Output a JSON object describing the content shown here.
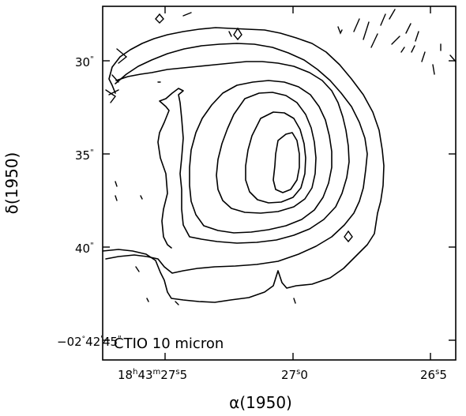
{
  "chart_data": {
    "type": "contour",
    "annotation": "CTIO 10 micron",
    "xlabel": "α(1950)",
    "ylabel": "δ(1950)",
    "x_ticks": {
      "left": {
        "h": "18",
        "m": "43",
        "s": "27",
        "frac": "5"
      },
      "middle": {
        "s": "27",
        "frac": "0"
      },
      "right": {
        "s": "26",
        "frac": "5"
      }
    },
    "y_ticks": {
      "bottom": {
        "deg": "−02",
        "arcmin": "42",
        "arcsec": "45",
        "unit": "\""
      },
      "labels": [
        {
          "value": "40",
          "unit": "\""
        },
        {
          "value": "35",
          "unit": "\""
        },
        {
          "value": "30",
          "unit": "\""
        }
      ]
    },
    "contour_levels": 7
  }
}
